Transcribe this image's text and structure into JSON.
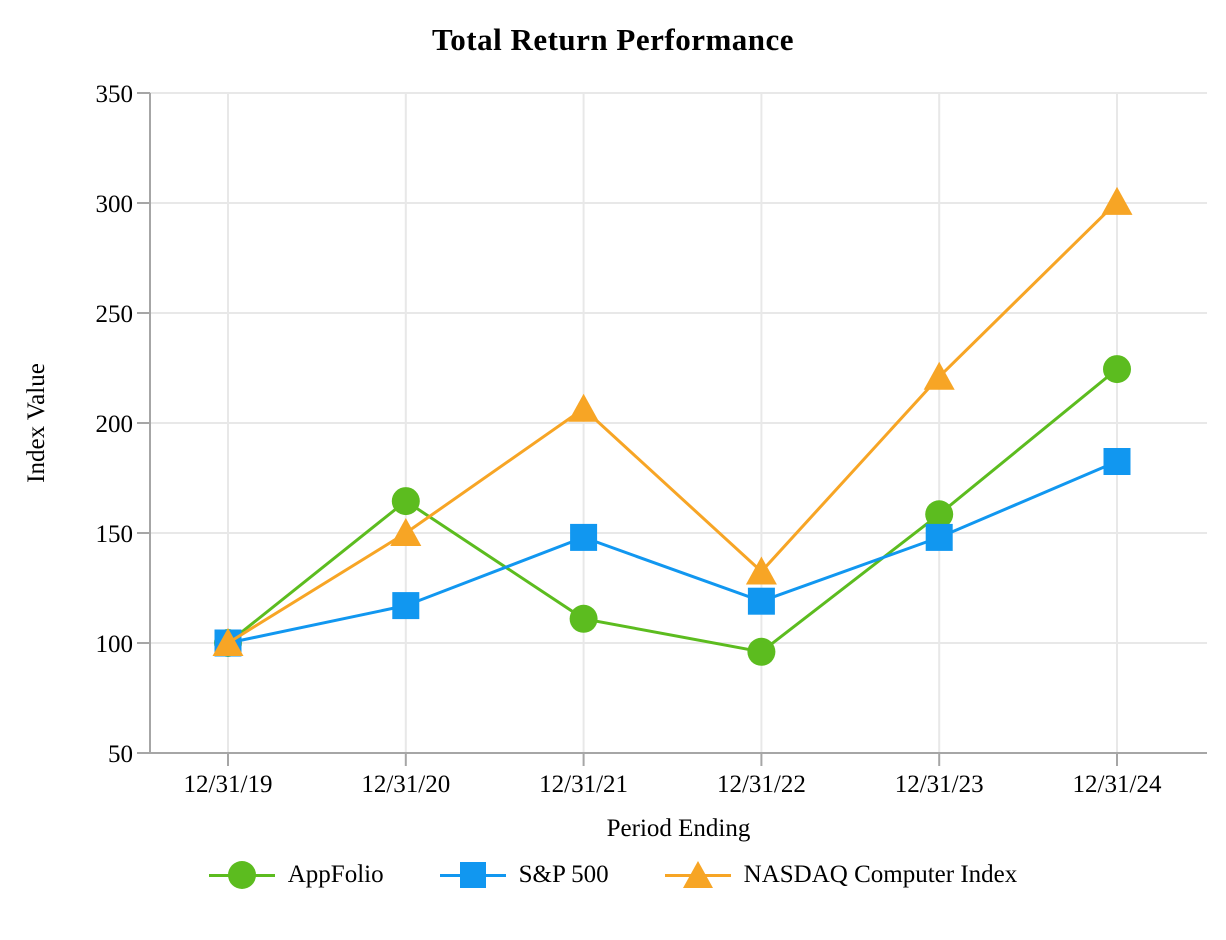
{
  "chart_data": {
    "type": "line",
    "title": "Total Return Performance",
    "xlabel": "Period Ending",
    "ylabel": "Index Value",
    "ylim": [
      50,
      350
    ],
    "yticks": [
      50,
      100,
      150,
      200,
      250,
      300,
      350
    ],
    "categories": [
      "12/31/19",
      "12/31/20",
      "12/31/21",
      "12/31/22",
      "12/31/23",
      "12/31/24"
    ],
    "series": [
      {
        "name": "AppFolio",
        "marker": "circle",
        "color": "#5CBC1F",
        "values": [
          100,
          164.5,
          111,
          96,
          158.5,
          224.5
        ]
      },
      {
        "name": "S&P 500",
        "marker": "square",
        "color": "#1197F0",
        "values": [
          100,
          117,
          148,
          119,
          148,
          182.5
        ]
      },
      {
        "name": "NASDAQ Computer Index",
        "marker": "triangle",
        "color": "#F7A525",
        "values": [
          100,
          150,
          206.5,
          132.5,
          221,
          300.5
        ]
      }
    ],
    "grid": true,
    "legend_position": "bottom",
    "colors": {
      "gridline": "#E8E8E8",
      "axis": "#A6A6A6",
      "text": "#000000",
      "background": "#FFFFFF"
    }
  }
}
